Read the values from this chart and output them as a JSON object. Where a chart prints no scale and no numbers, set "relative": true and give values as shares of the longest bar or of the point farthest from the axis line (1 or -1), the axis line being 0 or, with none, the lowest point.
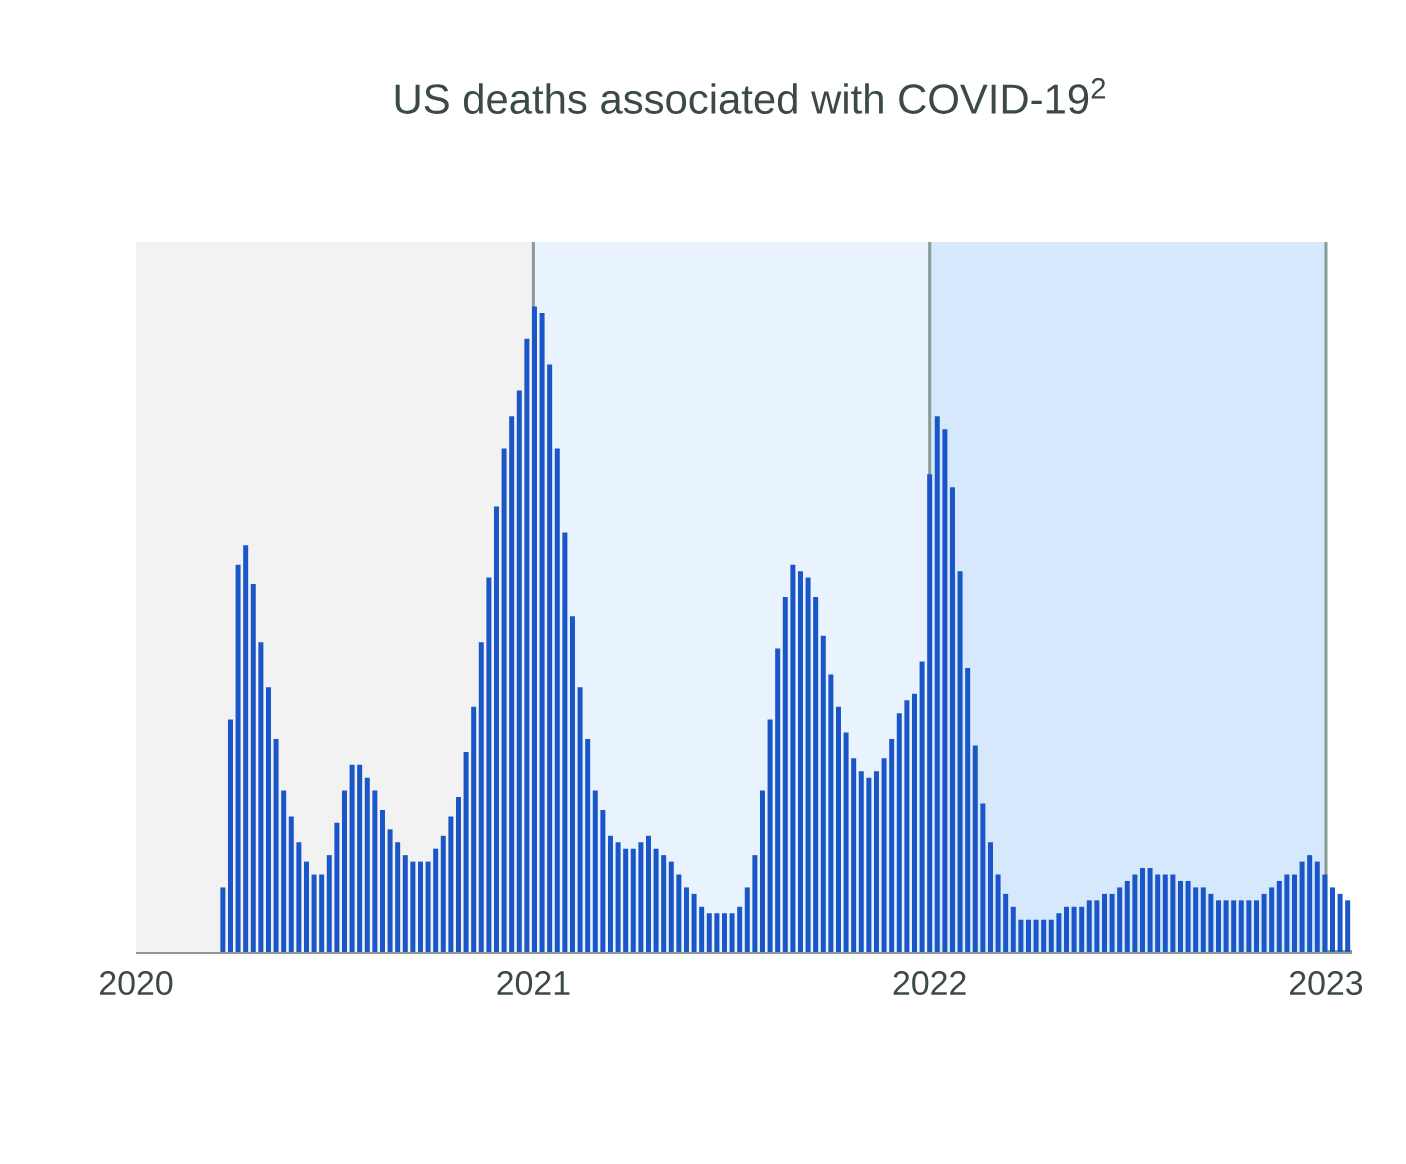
{
  "chart_data": {
    "type": "bar",
    "title": "US deaths associated with COVID-19$^{2}$",
    "relative": true,
    "color": "#1a56c8",
    "x": [
      "2020-03-21",
      "2020-03-28",
      "2020-04-04",
      "2020-04-11",
      "2020-04-18",
      "2020-04-25",
      "2020-05-02",
      "2020-05-09",
      "2020-05-16",
      "2020-05-23",
      "2020-05-30",
      "2020-06-06",
      "2020-06-13",
      "2020-06-20",
      "2020-06-27",
      "2020-07-04",
      "2020-07-11",
      "2020-07-18",
      "2020-07-25",
      "2020-08-01",
      "2020-08-08",
      "2020-08-15",
      "2020-08-22",
      "2020-08-29",
      "2020-09-05",
      "2020-09-12",
      "2020-09-19",
      "2020-09-26",
      "2020-10-03",
      "2020-10-10",
      "2020-10-17",
      "2020-10-24",
      "2020-10-31",
      "2020-11-07",
      "2020-11-14",
      "2020-11-21",
      "2020-11-28",
      "2020-12-05",
      "2020-12-12",
      "2020-12-19",
      "2020-12-26",
      "2021-01-02",
      "2021-01-09",
      "2021-01-16",
      "2021-01-23",
      "2021-01-30",
      "2021-02-06",
      "2021-02-13",
      "2021-02-20",
      "2021-02-27",
      "2021-03-06",
      "2021-03-13",
      "2021-03-20",
      "2021-03-27",
      "2021-04-03",
      "2021-04-10",
      "2021-04-17",
      "2021-04-24",
      "2021-05-01",
      "2021-05-08",
      "2021-05-15",
      "2021-05-22",
      "2021-05-29",
      "2021-06-05",
      "2021-06-12",
      "2021-06-19",
      "2021-06-26",
      "2021-07-03",
      "2021-07-10",
      "2021-07-17",
      "2021-07-24",
      "2021-07-31",
      "2021-08-07",
      "2021-08-14",
      "2021-08-21",
      "2021-08-28",
      "2021-09-04",
      "2021-09-11",
      "2021-09-18",
      "2021-09-25",
      "2021-10-02",
      "2021-10-09",
      "2021-10-16",
      "2021-10-23",
      "2021-10-30",
      "2021-11-06",
      "2021-11-13",
      "2021-11-20",
      "2021-11-27",
      "2021-12-04",
      "2021-12-11",
      "2021-12-18",
      "2021-12-25",
      "2022-01-01",
      "2022-01-08",
      "2022-01-15",
      "2022-01-22",
      "2022-01-29",
      "2022-02-05",
      "2022-02-12",
      "2022-02-19",
      "2022-02-26",
      "2022-03-05",
      "2022-03-12",
      "2022-03-19",
      "2022-03-26",
      "2022-04-02",
      "2022-04-09",
      "2022-04-16",
      "2022-04-23",
      "2022-04-30",
      "2022-05-07",
      "2022-05-14",
      "2022-05-21",
      "2022-05-28",
      "2022-06-04",
      "2022-06-11",
      "2022-06-18",
      "2022-06-25",
      "2022-07-02",
      "2022-07-09",
      "2022-07-16",
      "2022-07-23",
      "2022-07-30",
      "2022-08-06",
      "2022-08-13",
      "2022-08-20",
      "2022-08-27",
      "2022-09-03",
      "2022-09-10",
      "2022-09-17",
      "2022-09-24",
      "2022-10-01",
      "2022-10-08",
      "2022-10-15",
      "2022-10-22",
      "2022-10-29",
      "2022-11-05",
      "2022-11-12",
      "2022-11-19",
      "2022-11-26",
      "2022-12-03",
      "2022-12-10",
      "2022-12-17",
      "2022-12-24",
      "2022-12-31",
      "2023-01-07",
      "2023-01-14",
      "2023-01-21"
    ],
    "values": [
      0.1,
      0.36,
      0.6,
      0.63,
      0.57,
      0.48,
      0.41,
      0.33,
      0.25,
      0.21,
      0.17,
      0.14,
      0.12,
      0.12,
      0.15,
      0.2,
      0.25,
      0.29,
      0.29,
      0.27,
      0.25,
      0.22,
      0.19,
      0.17,
      0.15,
      0.14,
      0.14,
      0.14,
      0.16,
      0.18,
      0.21,
      0.24,
      0.31,
      0.38,
      0.48,
      0.58,
      0.69,
      0.78,
      0.83,
      0.87,
      0.95,
      1.0,
      0.99,
      0.91,
      0.78,
      0.65,
      0.52,
      0.41,
      0.33,
      0.25,
      0.22,
      0.18,
      0.17,
      0.16,
      0.16,
      0.17,
      0.18,
      0.16,
      0.15,
      0.14,
      0.12,
      0.1,
      0.09,
      0.07,
      0.06,
      0.06,
      0.06,
      0.06,
      0.07,
      0.1,
      0.15,
      0.25,
      0.36,
      0.47,
      0.55,
      0.6,
      0.59,
      0.58,
      0.55,
      0.49,
      0.43,
      0.38,
      0.34,
      0.3,
      0.28,
      0.27,
      0.28,
      0.3,
      0.33,
      0.37,
      0.39,
      0.4,
      0.45,
      0.74,
      0.83,
      0.81,
      0.72,
      0.59,
      0.44,
      0.32,
      0.23,
      0.17,
      0.12,
      0.09,
      0.07,
      0.05,
      0.05,
      0.05,
      0.05,
      0.05,
      0.06,
      0.07,
      0.07,
      0.07,
      0.08,
      0.08,
      0.09,
      0.09,
      0.1,
      0.11,
      0.12,
      0.13,
      0.13,
      0.12,
      0.12,
      0.12,
      0.11,
      0.11,
      0.1,
      0.1,
      0.09,
      0.08,
      0.08,
      0.08,
      0.08,
      0.08,
      0.08,
      0.09,
      0.1,
      0.11,
      0.12,
      0.12,
      0.14,
      0.15,
      0.14,
      0.12,
      0.1,
      0.09,
      0.08
    ],
    "xlim": [
      "2020-01-01",
      "2023-01-25"
    ],
    "xticks": [
      "2020",
      "2021",
      "2022",
      "2023"
    ],
    "bands": [
      {
        "axis": "x",
        "from": "2020",
        "to": "2021",
        "color": "#f2f2f2"
      },
      {
        "axis": "x",
        "from": "2021",
        "to": "2022",
        "color": "#e8f3fd"
      },
      {
        "axis": "x",
        "from": "2022",
        "to": "2023",
        "color": "#d5e8fc"
      }
    ],
    "ref_lines": [
      {
        "axis": "x",
        "value": "2021",
        "color": "#8a9a94"
      },
      {
        "axis": "x",
        "value": "2022",
        "color": "#8a9a94"
      },
      {
        "axis": "x",
        "value": "2023",
        "color": "#8a9a94"
      }
    ]
  }
}
